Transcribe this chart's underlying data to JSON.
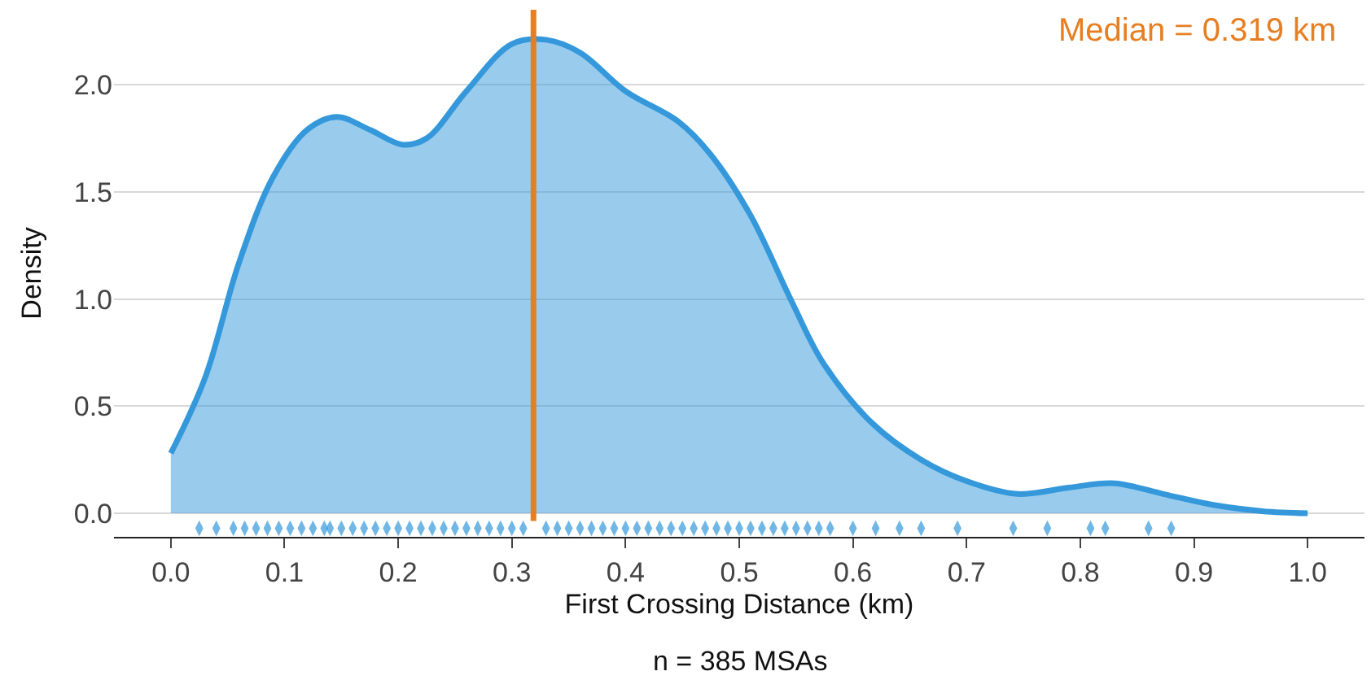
{
  "chart_data": {
    "type": "area",
    "xlabel": "First Crossing Distance (km)",
    "ylabel": "Density",
    "xlim": [
      -0.05,
      1.05
    ],
    "xticks": [
      {
        "value": 0,
        "label": "0.0"
      },
      0.1,
      0.2,
      0.3,
      0.4,
      0.5,
      0.6,
      0.7,
      0.8,
      0.9,
      {
        "value": 1,
        "label": "1.0"
      }
    ],
    "ylim": [
      -0.11,
      2.35
    ],
    "yticks": [
      {
        "value": 0,
        "label": "0.0"
      },
      0.5,
      {
        "value": 1,
        "label": "1.0"
      },
      1.5,
      {
        "value": 2,
        "label": "2.0"
      }
    ],
    "grid": "y",
    "series": [
      {
        "color": "#3498db",
        "x": [
          0,
          0.03,
          0.06,
          0.09,
          0.12,
          0.146,
          0.175,
          0.204,
          0.225,
          0.26,
          0.3,
          0.33,
          0.36,
          0.4,
          0.446,
          0.474,
          0.51,
          0.546,
          0.574,
          0.617,
          0.66,
          0.7,
          0.745,
          0.79,
          0.83,
          0.873,
          0.916,
          0.96,
          1.0
        ],
        "values": [
          0.28,
          0.63,
          1.17,
          1.57,
          1.79,
          1.85,
          1.79,
          1.72,
          1.75,
          1.97,
          2.19,
          2.21,
          2.15,
          1.97,
          1.83,
          1.68,
          1.39,
          0.99,
          0.7,
          0.42,
          0.25,
          0.15,
          0.09,
          0.12,
          0.14,
          0.09,
          0.04,
          0.01,
          0.0
        ]
      },
      {
        "type": "scatter",
        "color": "#3498db",
        "x": [
          0.025,
          0.04,
          0.055,
          0.065,
          0.075,
          0.085,
          0.095,
          0.105,
          0.115,
          0.125,
          0.135,
          0.14,
          0.15,
          0.16,
          0.17,
          0.18,
          0.19,
          0.2,
          0.21,
          0.22,
          0.23,
          0.24,
          0.25,
          0.26,
          0.27,
          0.28,
          0.29,
          0.3,
          0.31,
          0.33,
          0.34,
          0.35,
          0.36,
          0.37,
          0.38,
          0.39,
          0.4,
          0.41,
          0.42,
          0.43,
          0.44,
          0.45,
          0.46,
          0.47,
          0.48,
          0.49,
          0.5,
          0.51,
          0.52,
          0.53,
          0.54,
          0.55,
          0.56,
          0.57,
          0.58,
          0.6,
          0.62,
          0.641,
          0.66,
          0.692,
          0.741,
          0.771,
          0.809,
          0.822,
          0.86,
          0.88
        ],
        "values": [
          -0.07,
          -0.07,
          -0.07,
          -0.07,
          -0.07,
          -0.07,
          -0.07,
          -0.07,
          -0.07,
          -0.07,
          -0.07,
          -0.07,
          -0.07,
          -0.07,
          -0.07,
          -0.07,
          -0.07,
          -0.07,
          -0.07,
          -0.07,
          -0.07,
          -0.07,
          -0.07,
          -0.07,
          -0.07,
          -0.07,
          -0.07,
          -0.07,
          -0.07,
          -0.07,
          -0.07,
          -0.07,
          -0.07,
          -0.07,
          -0.07,
          -0.07,
          -0.07,
          -0.07,
          -0.07,
          -0.07,
          -0.07,
          -0.07,
          -0.07,
          -0.07,
          -0.07,
          -0.07,
          -0.07,
          -0.07,
          -0.07,
          -0.07,
          -0.07,
          -0.07,
          -0.07,
          -0.07,
          -0.07,
          -0.07,
          -0.07,
          -0.07,
          -0.07,
          -0.07,
          -0.07,
          -0.07,
          -0.07,
          -0.07,
          -0.07,
          -0.07
        ]
      }
    ],
    "ref_lines": [
      {
        "axis": "x",
        "value": 0.319,
        "label": "Median = 0.319 km",
        "color": "#e67e22"
      }
    ],
    "annotations": [
      "n = 385 MSAs"
    ]
  }
}
